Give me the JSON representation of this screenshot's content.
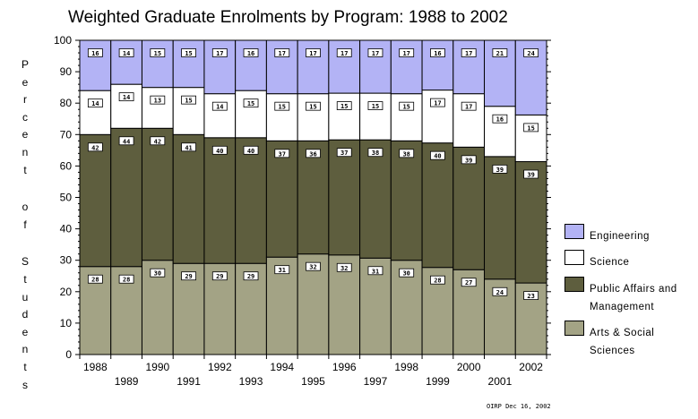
{
  "chart_data": {
    "type": "bar",
    "stacked": true,
    "percent": true,
    "title": "Weighted Graduate Enrolments by Program: 1988 to 2002",
    "ylabel": "Percent of Students",
    "xlabel": "",
    "ylim": [
      0,
      100
    ],
    "yticks": [
      "0",
      "10",
      "20",
      "30",
      "40",
      "50",
      "60",
      "70",
      "80",
      "90",
      "100"
    ],
    "categories": [
      "1988",
      "1989",
      "1990",
      "1991",
      "1992",
      "1993",
      "1994",
      "1995",
      "1996",
      "1997",
      "1998",
      "1999",
      "2000",
      "2001",
      "2002"
    ],
    "series": [
      {
        "name": "Arts & Social Sciences",
        "color": "#a3a385",
        "labels": [
          "28",
          "28",
          "30",
          "29",
          "29",
          "29",
          "31",
          "32",
          "32",
          "31",
          "30",
          "28",
          "27",
          "24",
          "23"
        ],
        "values": [
          28,
          28,
          30,
          29,
          29,
          29,
          31,
          32,
          32,
          31,
          30,
          28,
          27,
          24,
          23
        ]
      },
      {
        "name": "Public Affairs and Management",
        "color": "#5e5e3e",
        "labels": [
          "42",
          "44",
          "42",
          "41",
          "40",
          "40",
          "37",
          "36",
          "37",
          "38",
          "38",
          "40",
          "39",
          "39",
          "39"
        ],
        "values": [
          42,
          44,
          42,
          41,
          40,
          40,
          37,
          36,
          37,
          38,
          38,
          40,
          39,
          39,
          39
        ]
      },
      {
        "name": "Science",
        "color": "#ffffff",
        "labels": [
          "14",
          "14",
          "13",
          "15",
          "14",
          "15",
          "15",
          "15",
          "15",
          "15",
          "15",
          "17",
          "17",
          "16",
          "15"
        ],
        "values": [
          14,
          14,
          13,
          15,
          14,
          15,
          15,
          15,
          15,
          15,
          15,
          17,
          17,
          16,
          15
        ]
      },
      {
        "name": "Engineering",
        "color": "#b3b3f5",
        "labels": [
          "16",
          "14",
          "15",
          "15",
          "17",
          "16",
          "17",
          "17",
          "17",
          "17",
          "17",
          "16",
          "17",
          "21",
          "24"
        ],
        "values": [
          16,
          14,
          15,
          15,
          17,
          16,
          17,
          17,
          17,
          17,
          17,
          16,
          17,
          21,
          24
        ]
      }
    ]
  },
  "legend": [
    {
      "label_line1": "Engineering",
      "label_line2": "",
      "color": "#b3b3f5"
    },
    {
      "label_line1": "Science",
      "label_line2": "",
      "color": "#ffffff"
    },
    {
      "label_line1": "Public Affairs and",
      "label_line2": "Management",
      "color": "#5e5e3e"
    },
    {
      "label_line1": "Arts & Social",
      "label_line2": "Sciences",
      "color": "#a3a385"
    }
  ],
  "credit": "OIRP Dec 16, 2002"
}
